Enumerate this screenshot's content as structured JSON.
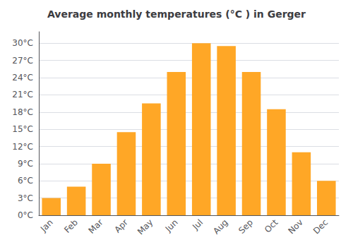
{
  "chart_data": {
    "type": "bar",
    "title": "Average monthly temperatures (°C ) in Gerger",
    "categories": [
      "Jan",
      "Feb",
      "Mar",
      "Apr",
      "May",
      "Jun",
      "Jul",
      "Aug",
      "Sep",
      "Oct",
      "Nov",
      "Dec"
    ],
    "values": [
      3,
      5,
      9,
      14.5,
      19.5,
      25,
      30,
      29.5,
      25,
      18.5,
      11,
      6
    ],
    "color": "#FFA726",
    "ylim": [
      0,
      32
    ],
    "yticks": [
      {
        "value": 0,
        "label": "0°C"
      },
      {
        "value": 3,
        "label": "3°C"
      },
      {
        "value": 6,
        "label": "6°C"
      },
      {
        "value": 9,
        "label": "9°C"
      },
      {
        "value": 12,
        "label": "12°C"
      },
      {
        "value": 15,
        "label": "15°C"
      },
      {
        "value": 18,
        "label": "18°C"
      },
      {
        "value": 21,
        "label": "21°C"
      },
      {
        "value": 24,
        "label": "24°C"
      },
      {
        "value": 27,
        "label": "27°C"
      },
      {
        "value": 30,
        "label": "30°C"
      }
    ],
    "grid": true
  }
}
